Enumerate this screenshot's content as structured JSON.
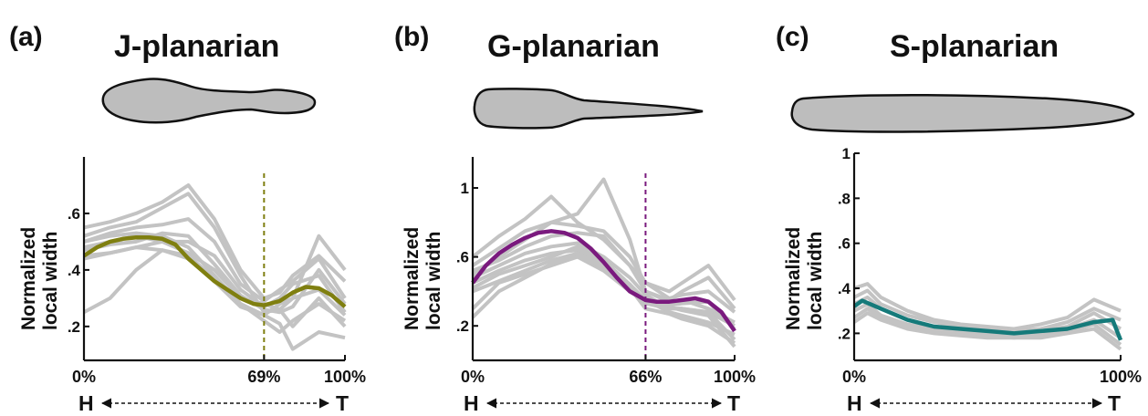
{
  "chart_data": [
    {
      "type": "line",
      "panel_label": "(a)",
      "title": "J-planarian",
      "ylabel": [
        "Normalized",
        "local width"
      ],
      "xlim": [
        0,
        100
      ],
      "ylim": [
        0.08,
        0.8
      ],
      "yticks": [
        0.2,
        0.4,
        0.6
      ],
      "ytick_labels": [
        ".2",
        ".4",
        ".6"
      ],
      "xtick_labels": [
        "0%",
        "69%",
        "100%"
      ],
      "marker_x": 69,
      "head_label": "H",
      "tail_label": "T",
      "mean_color": "#7f7f10",
      "individual_color": "#c3c3c3",
      "mean": {
        "x": [
          0,
          5,
          10,
          15,
          20,
          25,
          30,
          35,
          40,
          45,
          50,
          55,
          60,
          65,
          69,
          75,
          80,
          85,
          90,
          95,
          100
        ],
        "y": [
          0.45,
          0.48,
          0.5,
          0.51,
          0.515,
          0.515,
          0.51,
          0.49,
          0.44,
          0.4,
          0.36,
          0.33,
          0.3,
          0.28,
          0.275,
          0.29,
          0.32,
          0.34,
          0.335,
          0.31,
          0.27
        ]
      },
      "individuals": [
        {
          "x": [
            0,
            10,
            20,
            30,
            40,
            50,
            60,
            69,
            75,
            80,
            90,
            100
          ],
          "y": [
            0.55,
            0.57,
            0.6,
            0.64,
            0.7,
            0.58,
            0.4,
            0.3,
            0.32,
            0.38,
            0.45,
            0.36
          ]
        },
        {
          "x": [
            0,
            10,
            20,
            30,
            40,
            50,
            60,
            69,
            75,
            80,
            90,
            100
          ],
          "y": [
            0.52,
            0.55,
            0.57,
            0.62,
            0.67,
            0.55,
            0.38,
            0.25,
            0.26,
            0.3,
            0.52,
            0.4
          ]
        },
        {
          "x": [
            0,
            10,
            20,
            30,
            40,
            50,
            60,
            69,
            75,
            80,
            90,
            100
          ],
          "y": [
            0.5,
            0.53,
            0.55,
            0.56,
            0.58,
            0.5,
            0.35,
            0.29,
            0.33,
            0.36,
            0.44,
            0.3
          ]
        },
        {
          "x": [
            0,
            10,
            20,
            30,
            40,
            50,
            60,
            69,
            75,
            80,
            90,
            100
          ],
          "y": [
            0.48,
            0.5,
            0.52,
            0.5,
            0.5,
            0.45,
            0.33,
            0.27,
            0.3,
            0.35,
            0.38,
            0.25
          ]
        },
        {
          "x": [
            0,
            10,
            20,
            30,
            40,
            50,
            60,
            69,
            75,
            80,
            90,
            100
          ],
          "y": [
            0.47,
            0.49,
            0.5,
            0.53,
            0.52,
            0.42,
            0.31,
            0.26,
            0.25,
            0.27,
            0.4,
            0.28
          ]
        },
        {
          "x": [
            0,
            10,
            20,
            30,
            40,
            50,
            60,
            69,
            75,
            80,
            90,
            100
          ],
          "y": [
            0.45,
            0.46,
            0.48,
            0.5,
            0.46,
            0.4,
            0.3,
            0.28,
            0.26,
            0.2,
            0.3,
            0.2
          ]
        },
        {
          "x": [
            0,
            10,
            20,
            30,
            40,
            50,
            60,
            69,
            75,
            80,
            90,
            100
          ],
          "y": [
            0.5,
            0.52,
            0.53,
            0.52,
            0.48,
            0.38,
            0.28,
            0.22,
            0.18,
            0.22,
            0.28,
            0.22
          ]
        },
        {
          "x": [
            0,
            10,
            20,
            30,
            40,
            50,
            60,
            69,
            75,
            80,
            90,
            100
          ],
          "y": [
            0.44,
            0.46,
            0.48,
            0.47,
            0.44,
            0.36,
            0.27,
            0.24,
            0.21,
            0.12,
            0.18,
            0.16
          ]
        },
        {
          "x": [
            0,
            10,
            20,
            30,
            40,
            50,
            60,
            69,
            75,
            80,
            90,
            100
          ],
          "y": [
            0.25,
            0.3,
            0.4,
            0.47,
            0.45,
            0.37,
            0.28,
            0.24,
            0.28,
            0.3,
            0.33,
            0.24
          ]
        }
      ]
    },
    {
      "type": "line",
      "panel_label": "(b)",
      "title": "G-planarian",
      "ylabel": [
        "Normalized",
        "local width"
      ],
      "xlim": [
        0,
        100
      ],
      "ylim": [
        0.0,
        1.18
      ],
      "yticks": [
        0.2,
        0.6,
        1.0
      ],
      "ytick_labels": [
        ".2",
        ".6",
        "1"
      ],
      "xtick_labels": [
        "0%",
        "66%",
        "100%"
      ],
      "marker_x": 66,
      "head_label": "H",
      "tail_label": "T",
      "mean_color": "#7a1a7e",
      "individual_color": "#c3c3c3",
      "mean": {
        "x": [
          0,
          5,
          10,
          15,
          20,
          25,
          30,
          35,
          40,
          45,
          50,
          55,
          60,
          66,
          70,
          75,
          80,
          85,
          90,
          95,
          100
        ],
        "y": [
          0.45,
          0.55,
          0.62,
          0.67,
          0.71,
          0.74,
          0.75,
          0.74,
          0.71,
          0.65,
          0.57,
          0.48,
          0.4,
          0.35,
          0.34,
          0.34,
          0.35,
          0.36,
          0.34,
          0.28,
          0.17
        ]
      },
      "individuals": [
        {
          "x": [
            0,
            10,
            20,
            30,
            40,
            50,
            60,
            66,
            75,
            80,
            90,
            100
          ],
          "y": [
            0.6,
            0.72,
            0.82,
            0.95,
            0.8,
            0.7,
            0.55,
            0.45,
            0.4,
            0.45,
            0.55,
            0.35
          ]
        },
        {
          "x": [
            0,
            10,
            20,
            30,
            40,
            50,
            60,
            66,
            75,
            80,
            90,
            100
          ],
          "y": [
            0.55,
            0.65,
            0.75,
            0.8,
            0.85,
            1.05,
            0.7,
            0.4,
            0.35,
            0.4,
            0.48,
            0.3
          ]
        },
        {
          "x": [
            0,
            10,
            20,
            30,
            40,
            50,
            60,
            66,
            75,
            80,
            90,
            100
          ],
          "y": [
            0.5,
            0.6,
            0.7,
            0.8,
            0.78,
            0.75,
            0.6,
            0.45,
            0.36,
            0.38,
            0.4,
            0.28
          ]
        },
        {
          "x": [
            0,
            10,
            20,
            30,
            40,
            50,
            60,
            66,
            75,
            80,
            90,
            100
          ],
          "y": [
            0.52,
            0.58,
            0.66,
            0.72,
            0.74,
            0.72,
            0.55,
            0.4,
            0.34,
            0.35,
            0.3,
            0.22
          ]
        },
        {
          "x": [
            0,
            10,
            20,
            30,
            40,
            50,
            60,
            66,
            75,
            80,
            90,
            100
          ],
          "y": [
            0.48,
            0.55,
            0.62,
            0.66,
            0.68,
            0.6,
            0.48,
            0.38,
            0.3,
            0.3,
            0.28,
            0.2
          ]
        },
        {
          "x": [
            0,
            10,
            20,
            30,
            40,
            50,
            60,
            66,
            75,
            80,
            90,
            100
          ],
          "y": [
            0.45,
            0.52,
            0.58,
            0.62,
            0.64,
            0.56,
            0.44,
            0.35,
            0.28,
            0.26,
            0.22,
            0.15
          ]
        },
        {
          "x": [
            0,
            10,
            20,
            30,
            40,
            50,
            60,
            66,
            75,
            80,
            90,
            100
          ],
          "y": [
            0.42,
            0.5,
            0.55,
            0.6,
            0.66,
            0.58,
            0.44,
            0.33,
            0.3,
            0.3,
            0.28,
            0.12
          ]
        },
        {
          "x": [
            0,
            10,
            20,
            30,
            40,
            50,
            60,
            66,
            75,
            80,
            90,
            100
          ],
          "y": [
            0.4,
            0.46,
            0.52,
            0.58,
            0.62,
            0.55,
            0.42,
            0.3,
            0.27,
            0.24,
            0.2,
            0.1
          ]
        },
        {
          "x": [
            0,
            10,
            20,
            30,
            40,
            50,
            60,
            66,
            75,
            80,
            90,
            100
          ],
          "y": [
            0.3,
            0.45,
            0.5,
            0.55,
            0.6,
            0.52,
            0.4,
            0.34,
            0.32,
            0.33,
            0.34,
            0.18
          ]
        },
        {
          "x": [
            0,
            10,
            20,
            30,
            40,
            50,
            60,
            66,
            75,
            80,
            90,
            100
          ],
          "y": [
            0.25,
            0.4,
            0.48,
            0.56,
            0.62,
            0.54,
            0.42,
            0.36,
            0.31,
            0.29,
            0.26,
            0.08
          ]
        }
      ]
    },
    {
      "type": "line",
      "panel_label": "(c)",
      "title": "S-planarian",
      "ylabel": [
        "Normalized",
        "local width"
      ],
      "xlim": [
        0,
        100
      ],
      "ylim": [
        0.08,
        1.0
      ],
      "yticks": [
        0.2,
        0.4,
        0.6,
        0.8,
        1.0
      ],
      "ytick_labels": [
        ".2",
        ".4",
        ".6",
        ".8",
        "1"
      ],
      "xtick_labels": [
        "0%",
        "100%"
      ],
      "marker_x": null,
      "head_label": "H",
      "tail_label": "T",
      "mean_color": "#157a7a",
      "individual_color": "#c3c3c3",
      "mean": {
        "x": [
          0,
          3,
          10,
          20,
          30,
          40,
          50,
          60,
          70,
          80,
          90,
          97,
          100
        ],
        "y": [
          0.32,
          0.345,
          0.31,
          0.26,
          0.23,
          0.22,
          0.21,
          0.2,
          0.21,
          0.22,
          0.25,
          0.26,
          0.17
        ]
      },
      "individuals": [
        {
          "x": [
            0,
            5,
            10,
            20,
            30,
            40,
            50,
            60,
            70,
            80,
            90,
            100
          ],
          "y": [
            0.4,
            0.42,
            0.36,
            0.3,
            0.26,
            0.24,
            0.23,
            0.22,
            0.24,
            0.27,
            0.35,
            0.3
          ]
        },
        {
          "x": [
            0,
            5,
            10,
            20,
            30,
            40,
            50,
            60,
            70,
            80,
            90,
            100
          ],
          "y": [
            0.36,
            0.39,
            0.33,
            0.28,
            0.25,
            0.23,
            0.22,
            0.21,
            0.22,
            0.25,
            0.31,
            0.26
          ]
        },
        {
          "x": [
            0,
            5,
            10,
            20,
            30,
            40,
            50,
            60,
            70,
            80,
            90,
            100
          ],
          "y": [
            0.33,
            0.36,
            0.31,
            0.26,
            0.23,
            0.22,
            0.21,
            0.2,
            0.21,
            0.23,
            0.29,
            0.22
          ]
        },
        {
          "x": [
            0,
            5,
            10,
            20,
            30,
            40,
            50,
            60,
            70,
            80,
            90,
            100
          ],
          "y": [
            0.3,
            0.33,
            0.28,
            0.24,
            0.22,
            0.21,
            0.2,
            0.19,
            0.2,
            0.22,
            0.26,
            0.18
          ]
        },
        {
          "x": [
            0,
            5,
            10,
            20,
            30,
            40,
            50,
            60,
            70,
            80,
            90,
            100
          ],
          "y": [
            0.27,
            0.31,
            0.27,
            0.23,
            0.21,
            0.2,
            0.19,
            0.18,
            0.19,
            0.21,
            0.24,
            0.15
          ]
        },
        {
          "x": [
            0,
            5,
            10,
            20,
            30,
            40,
            50,
            60,
            70,
            80,
            90,
            100
          ],
          "y": [
            0.25,
            0.29,
            0.26,
            0.22,
            0.2,
            0.19,
            0.18,
            0.18,
            0.18,
            0.2,
            0.22,
            0.13
          ]
        }
      ]
    }
  ]
}
